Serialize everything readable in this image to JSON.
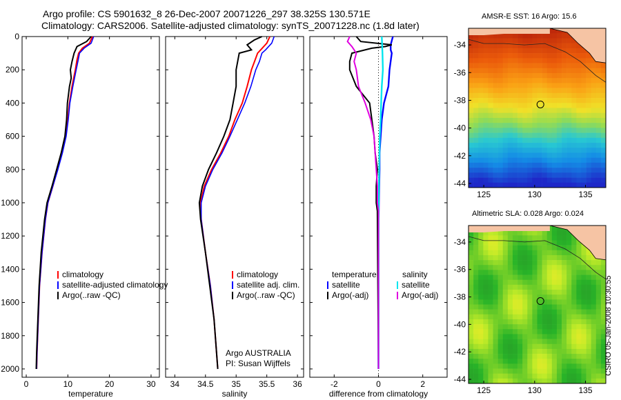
{
  "header": {
    "line1": "Argo profile: CS 5901632_8 26-Dec-2007 20071226_297 38.325S 130.571E",
    "line2": "Climatology: CARS2006. Satellite-adjusted climatology: synTS_20071228.nc (1.8d later)"
  },
  "colors": {
    "climatology": "#ff0000",
    "satellite": "#0000ff",
    "argo": "#000000",
    "salinity_sat": "#00e5ee",
    "salinity_argo": "#e000e0"
  },
  "chart_data": [
    {
      "type": "line",
      "xlabel": "temperature",
      "xlim": [
        -1,
        32
      ],
      "xticks": [
        0,
        10,
        20,
        30
      ],
      "ylim": [
        2050,
        0
      ],
      "yticks": [
        0,
        200,
        400,
        600,
        800,
        1000,
        1200,
        1400,
        1600,
        1800,
        2000
      ],
      "legend": [
        "climatology",
        "satellite-adjusted climatology",
        "Argo(..raw -QC)"
      ],
      "series": [
        {
          "name": "climatology",
          "y": [
            0,
            40,
            70,
            100,
            140,
            200,
            300,
            400,
            500,
            600,
            700,
            800,
            900,
            1000,
            1100,
            1300,
            1500,
            1700,
            1900,
            2000
          ],
          "x": [
            15.9,
            15.2,
            13.5,
            12.6,
            12.2,
            11.8,
            11.0,
            10.4,
            10.0,
            9.5,
            8.6,
            7.5,
            6.4,
            5.2,
            4.6,
            3.8,
            3.2,
            2.9,
            2.6,
            2.5
          ]
        },
        {
          "name": "satellite-adjusted climatology",
          "y": [
            0,
            40,
            70,
            100,
            140,
            200,
            300,
            400,
            500,
            600,
            700,
            800,
            900,
            1000,
            1100,
            1300,
            1500,
            1700,
            1900,
            2000
          ],
          "x": [
            16.2,
            15.6,
            13.9,
            12.8,
            12.5,
            12.0,
            11.2,
            10.5,
            10.1,
            9.6,
            8.7,
            7.6,
            6.4,
            5.2,
            4.6,
            3.8,
            3.2,
            2.9,
            2.6,
            2.5
          ]
        },
        {
          "name": "Argo(..raw -QC)",
          "y": [
            0,
            30,
            60,
            100,
            150,
            200,
            250,
            300,
            400,
            500,
            600,
            700,
            800,
            900,
            1000,
            1100,
            1300,
            1500,
            1700,
            1900,
            2000
          ],
          "x": [
            15.6,
            14.5,
            12.2,
            11.5,
            11.0,
            10.6,
            10.8,
            10.4,
            9.9,
            9.7,
            9.3,
            8.4,
            7.3,
            6.2,
            5.0,
            4.4,
            3.6,
            3.1,
            2.8,
            2.5,
            2.4
          ]
        }
      ]
    },
    {
      "type": "line",
      "xlabel": "salinity",
      "xlim": [
        33.85,
        36.1
      ],
      "xticks": [
        34,
        34.5,
        35,
        35.5,
        36
      ],
      "ylim": [
        2050,
        0
      ],
      "legend": [
        "climatology",
        "satellite adj. clim.",
        "Argo(..raw -QC)"
      ],
      "annotation": [
        "Argo AUSTRALIA",
        "PI: Susan Wijffels"
      ],
      "series": [
        {
          "name": "climatology",
          "y": [
            0,
            40,
            80,
            100,
            150,
            200,
            300,
            400,
            500,
            600,
            700,
            800,
            900,
            1000,
            1100,
            1300,
            1500,
            1700,
            1900,
            2000
          ],
          "x": [
            35.55,
            35.5,
            35.4,
            35.35,
            35.3,
            35.25,
            35.18,
            35.1,
            34.98,
            34.88,
            34.75,
            34.6,
            34.48,
            34.42,
            34.43,
            34.5,
            34.58,
            34.64,
            34.68,
            34.7
          ]
        },
        {
          "name": "satellite adj. clim.",
          "y": [
            0,
            40,
            80,
            100,
            150,
            200,
            300,
            400,
            500,
            600,
            700,
            800,
            900,
            1000,
            1100,
            1300,
            1500,
            1700,
            1900,
            2000
          ],
          "x": [
            35.62,
            35.58,
            35.48,
            35.42,
            35.38,
            35.32,
            35.24,
            35.14,
            35.02,
            34.9,
            34.77,
            34.62,
            34.5,
            34.43,
            34.43,
            34.5,
            34.58,
            34.64,
            34.68,
            34.7
          ]
        },
        {
          "name": "Argo(..raw -QC)",
          "y": [
            0,
            20,
            50,
            80,
            100,
            200,
            300,
            400,
            500,
            600,
            700,
            800,
            900,
            1000,
            1100,
            1300,
            1500,
            1700,
            1900,
            2000
          ],
          "x": [
            35.42,
            35.3,
            35.18,
            35.25,
            35.05,
            35.0,
            35.0,
            34.95,
            34.9,
            34.8,
            34.68,
            34.55,
            34.45,
            34.4,
            34.42,
            34.5,
            34.57,
            34.64,
            34.68,
            34.7
          ]
        }
      ]
    },
    {
      "type": "line",
      "xlabel": "difference from climatology",
      "xlim": [
        -3.1,
        3.1
      ],
      "xticks": [
        -2,
        0,
        2
      ],
      "ylim": [
        2050,
        0
      ],
      "legend_left": [
        "temperature",
        "satellite",
        "Argo(-adj)"
      ],
      "legend_right": [
        "salinity",
        "satellite",
        "Argo(-adj)"
      ],
      "series": [
        {
          "name": "temperature satellite",
          "y": [
            0,
            50,
            80,
            100,
            200,
            300,
            400,
            500,
            600,
            700,
            800,
            1000,
            1200,
            2000
          ],
          "x": [
            0.65,
            0.55,
            0.55,
            0.6,
            0.5,
            0.45,
            0.25,
            0.15,
            0.1,
            0.05,
            0.05,
            0.02,
            0.0,
            0.0
          ]
        },
        {
          "name": "temperature Argo(-adj)",
          "y": [
            0,
            30,
            50,
            60,
            70,
            100,
            150,
            200,
            300,
            400,
            500,
            600,
            700,
            800,
            900,
            1000,
            1050,
            2000
          ],
          "x": [
            -1.0,
            -0.8,
            0.6,
            0.3,
            -0.3,
            -1.2,
            -1.3,
            -1.3,
            -1.0,
            -0.4,
            -0.3,
            -0.2,
            -0.15,
            -0.05,
            -0.1,
            -0.1,
            -0.05,
            0.0
          ]
        },
        {
          "name": "salinity satellite",
          "y": [
            0,
            100,
            200,
            300,
            400,
            500,
            600,
            800,
            1000,
            2000
          ],
          "x": [
            0.15,
            0.18,
            0.2,
            0.15,
            0.12,
            0.1,
            0.06,
            0.03,
            0.01,
            0.0
          ]
        },
        {
          "name": "salinity Argo(-adj)",
          "y": [
            0,
            30,
            60,
            100,
            150,
            200,
            300,
            400,
            500,
            600,
            700,
            800,
            900,
            1000,
            1050,
            2000
          ],
          "x": [
            -1.3,
            -1.4,
            -1.2,
            -1.0,
            -1.1,
            -1.0,
            -0.9,
            -0.6,
            -0.35,
            -0.2,
            -0.15,
            -0.1,
            -0.05,
            -0.05,
            0.0,
            0.0
          ]
        }
      ]
    },
    {
      "type": "heatmap",
      "title": "AMSR-E SST: 16 Argo: 15.6",
      "xlim": [
        123.5,
        137
      ],
      "xticks": [
        125,
        130,
        135
      ],
      "ylim": [
        -44.3,
        -32.8
      ],
      "yticks": [
        -34,
        -36,
        -38,
        -40,
        -42,
        -44
      ],
      "marker": [
        130.57,
        -38.3
      ]
    },
    {
      "type": "heatmap",
      "title": "Altimetric SLA: 0.028 Argo: 0.024",
      "xlim": [
        123.5,
        137
      ],
      "xticks": [
        125,
        130,
        135
      ],
      "ylim": [
        -44.3,
        -32.8
      ],
      "yticks": [
        -34,
        -36,
        -38,
        -40,
        -42,
        -44
      ],
      "marker": [
        130.57,
        -38.3
      ]
    }
  ],
  "side_stamp": "CSIRO 05-Jan-2008 10:30:55"
}
